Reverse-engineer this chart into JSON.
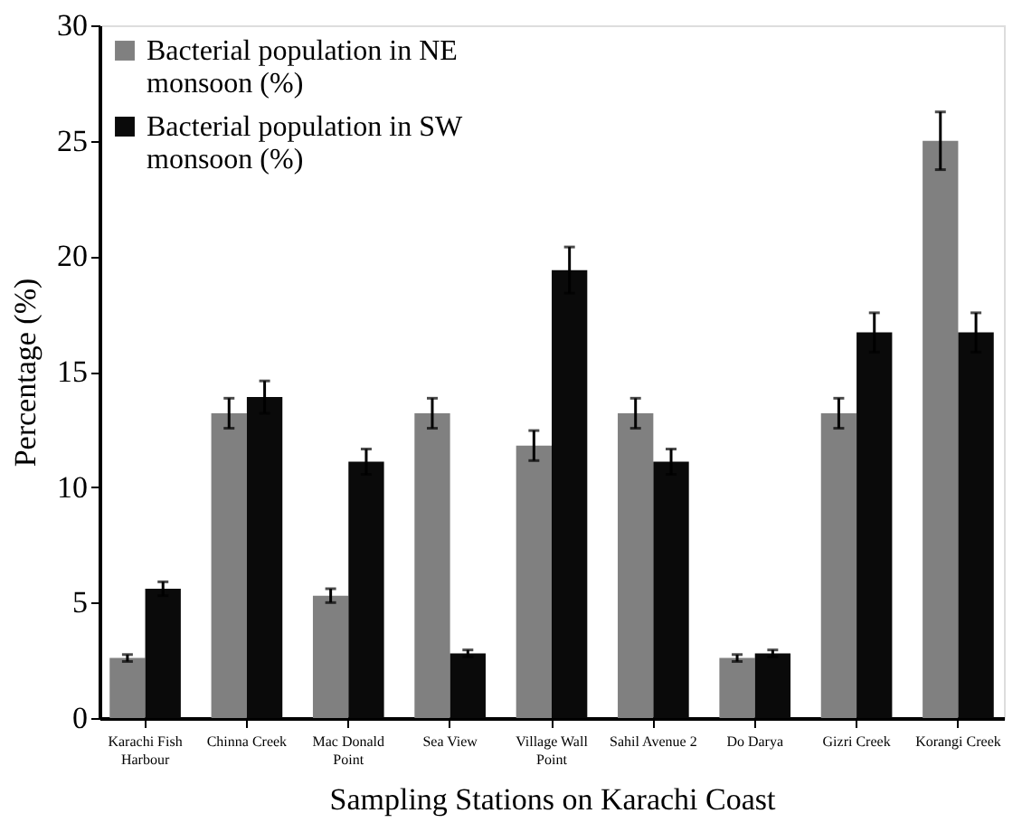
{
  "chart_data": {
    "type": "bar",
    "xlabel": "Sampling Stations on Karachi Coast",
    "ylabel": "Percentage (%)",
    "categories": [
      "Karachi Fish Harbour",
      "Chinna Creek",
      "Mac Donald Point",
      "Sea View",
      "Village Wall Point",
      "Sahil Avenue 2",
      "Do Darya",
      "Gizri Creek",
      "Korangi Creek"
    ],
    "series": [
      {
        "name": "Bacterial population in NE monsoon (%)",
        "color": "#808080",
        "values": [
          2.6,
          13.2,
          5.3,
          13.2,
          11.8,
          13.2,
          2.6,
          13.2,
          25.0
        ],
        "errors": [
          0.15,
          0.65,
          0.3,
          0.65,
          0.65,
          0.65,
          0.15,
          0.65,
          1.25
        ]
      },
      {
        "name": "Bacterial population in SW monsoon (%)",
        "color": "#0a0a0a",
        "values": [
          5.6,
          13.9,
          11.1,
          2.8,
          19.4,
          11.1,
          2.8,
          16.7,
          16.7
        ],
        "errors": [
          0.3,
          0.7,
          0.55,
          0.15,
          1.0,
          0.55,
          0.15,
          0.85,
          0.85
        ]
      }
    ],
    "ylim": [
      0,
      30
    ],
    "yticks": [
      0,
      5,
      10,
      15,
      20,
      25,
      30
    ],
    "grid": false,
    "legend": "top left"
  }
}
